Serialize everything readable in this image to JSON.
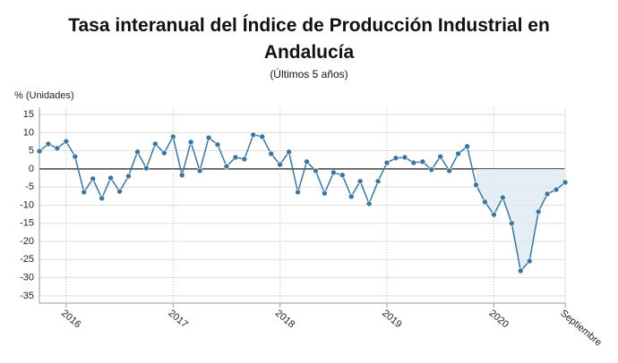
{
  "chart_data": {
    "type": "line",
    "title": "Tasa interanual del Índice de Producción Industrial en Andalucía",
    "subtitle": "(Últimos 5 años)",
    "y_label": "% (Unidades)",
    "categories": [
      null,
      null,
      null,
      "2016",
      null,
      null,
      null,
      null,
      null,
      null,
      null,
      null,
      null,
      null,
      null,
      "2017",
      null,
      null,
      null,
      null,
      null,
      null,
      null,
      null,
      null,
      null,
      null,
      "2018",
      null,
      null,
      null,
      null,
      null,
      null,
      null,
      null,
      null,
      null,
      null,
      "2019",
      null,
      null,
      null,
      null,
      null,
      null,
      null,
      null,
      null,
      null,
      null,
      "2020",
      null,
      null,
      null,
      null,
      null,
      null,
      null,
      "Septiembre"
    ],
    "values": [
      4.9,
      6.9,
      5.7,
      7.6,
      3.4,
      -6.4,
      -2.7,
      -8.1,
      -2.5,
      -6.2,
      -2.0,
      4.7,
      0.2,
      6.9,
      4.4,
      8.9,
      -1.7,
      7.4,
      -0.5,
      8.6,
      6.7,
      0.7,
      3.2,
      2.7,
      9.4,
      8.9,
      4.2,
      1.2,
      4.7,
      -6.4,
      2.0,
      -0.5,
      -6.7,
      -1.0,
      -1.7,
      -7.6,
      -3.4,
      -9.6,
      -3.4,
      1.7,
      3.0,
      3.2,
      1.7,
      2.0,
      -0.2,
      3.4,
      -0.5,
      4.2,
      6.2,
      -4.4,
      -9.1,
      -12.6,
      -7.9,
      -15.0,
      -28.1,
      -25.4,
      -11.8,
      -6.9,
      -5.7,
      -3.7
    ],
    "color": "#3b76a0",
    "ylim": [
      -37,
      17
    ],
    "yticks": [
      15,
      10,
      5,
      0,
      -5,
      -10,
      -15,
      -20,
      -25,
      -30,
      -35
    ],
    "grid": true
  }
}
